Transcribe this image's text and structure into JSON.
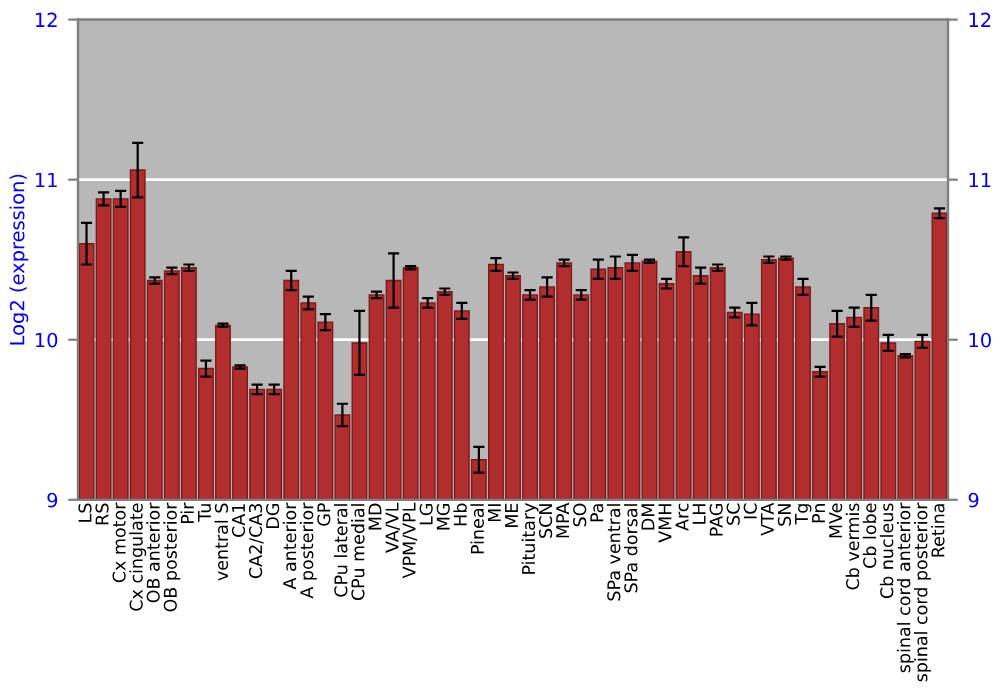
{
  "chart_data": {
    "type": "bar",
    "ylabel": "Log2 (expression)",
    "categories": [
      "LS",
      "RS",
      "Cx motor",
      "Cx cingulate",
      "OB anterior",
      "OB posterior",
      "Pir",
      "Tu",
      "ventral S",
      "CA1",
      "CA2/CA3",
      "DG",
      "A anterior",
      "A posterior",
      "GP",
      "CPu lateral",
      "CPu medial",
      "MD",
      "VA/VL",
      "VPM/VPL",
      "LG",
      "MG",
      "Hb",
      "Pineal",
      "MI",
      "ME",
      "Pituitary",
      "SCN",
      "MPA",
      "SO",
      "Pa",
      "SPa ventral",
      "SPa dorsal",
      "DM",
      "VMH",
      "Arc",
      "LH",
      "PAG",
      "SC",
      "IC",
      "VTA",
      "SN",
      "Tg",
      "Pn",
      "MVe",
      "Cb vermis",
      "Cb lobe",
      "Cb nucleus",
      "spinal cord anterior",
      "spinal cord posterior",
      "Retina"
    ],
    "values": [
      10.6,
      10.88,
      10.88,
      11.06,
      10.37,
      10.43,
      10.45,
      9.82,
      10.09,
      9.83,
      9.69,
      9.69,
      10.37,
      10.23,
      10.11,
      9.53,
      9.98,
      10.28,
      10.37,
      10.45,
      10.23,
      10.3,
      10.18,
      9.25,
      10.47,
      10.4,
      10.28,
      10.33,
      10.48,
      10.28,
      10.44,
      10.45,
      10.48,
      10.49,
      10.35,
      10.55,
      10.4,
      10.45,
      10.17,
      10.16,
      10.5,
      10.51,
      10.33,
      9.8,
      10.1,
      10.14,
      10.2,
      9.98,
      9.9,
      9.99,
      10.79
    ],
    "errors": [
      0.13,
      0.04,
      0.05,
      0.17,
      0.02,
      0.02,
      0.02,
      0.05,
      0.01,
      0.01,
      0.03,
      0.03,
      0.06,
      0.04,
      0.05,
      0.07,
      0.2,
      0.02,
      0.17,
      0.01,
      0.03,
      0.02,
      0.05,
      0.08,
      0.04,
      0.02,
      0.03,
      0.06,
      0.02,
      0.03,
      0.06,
      0.07,
      0.05,
      0.01,
      0.03,
      0.09,
      0.05,
      0.02,
      0.03,
      0.07,
      0.02,
      0.01,
      0.05,
      0.03,
      0.08,
      0.06,
      0.08,
      0.05,
      0.01,
      0.04,
      0.03
    ],
    "color": "#b22d2d",
    "ylim": [
      9,
      12
    ],
    "yticks": [
      9,
      10,
      11,
      12
    ],
    "y2lim": [
      9,
      12
    ],
    "y2ticks": [
      9,
      10,
      11,
      12
    ],
    "grid": "y"
  }
}
